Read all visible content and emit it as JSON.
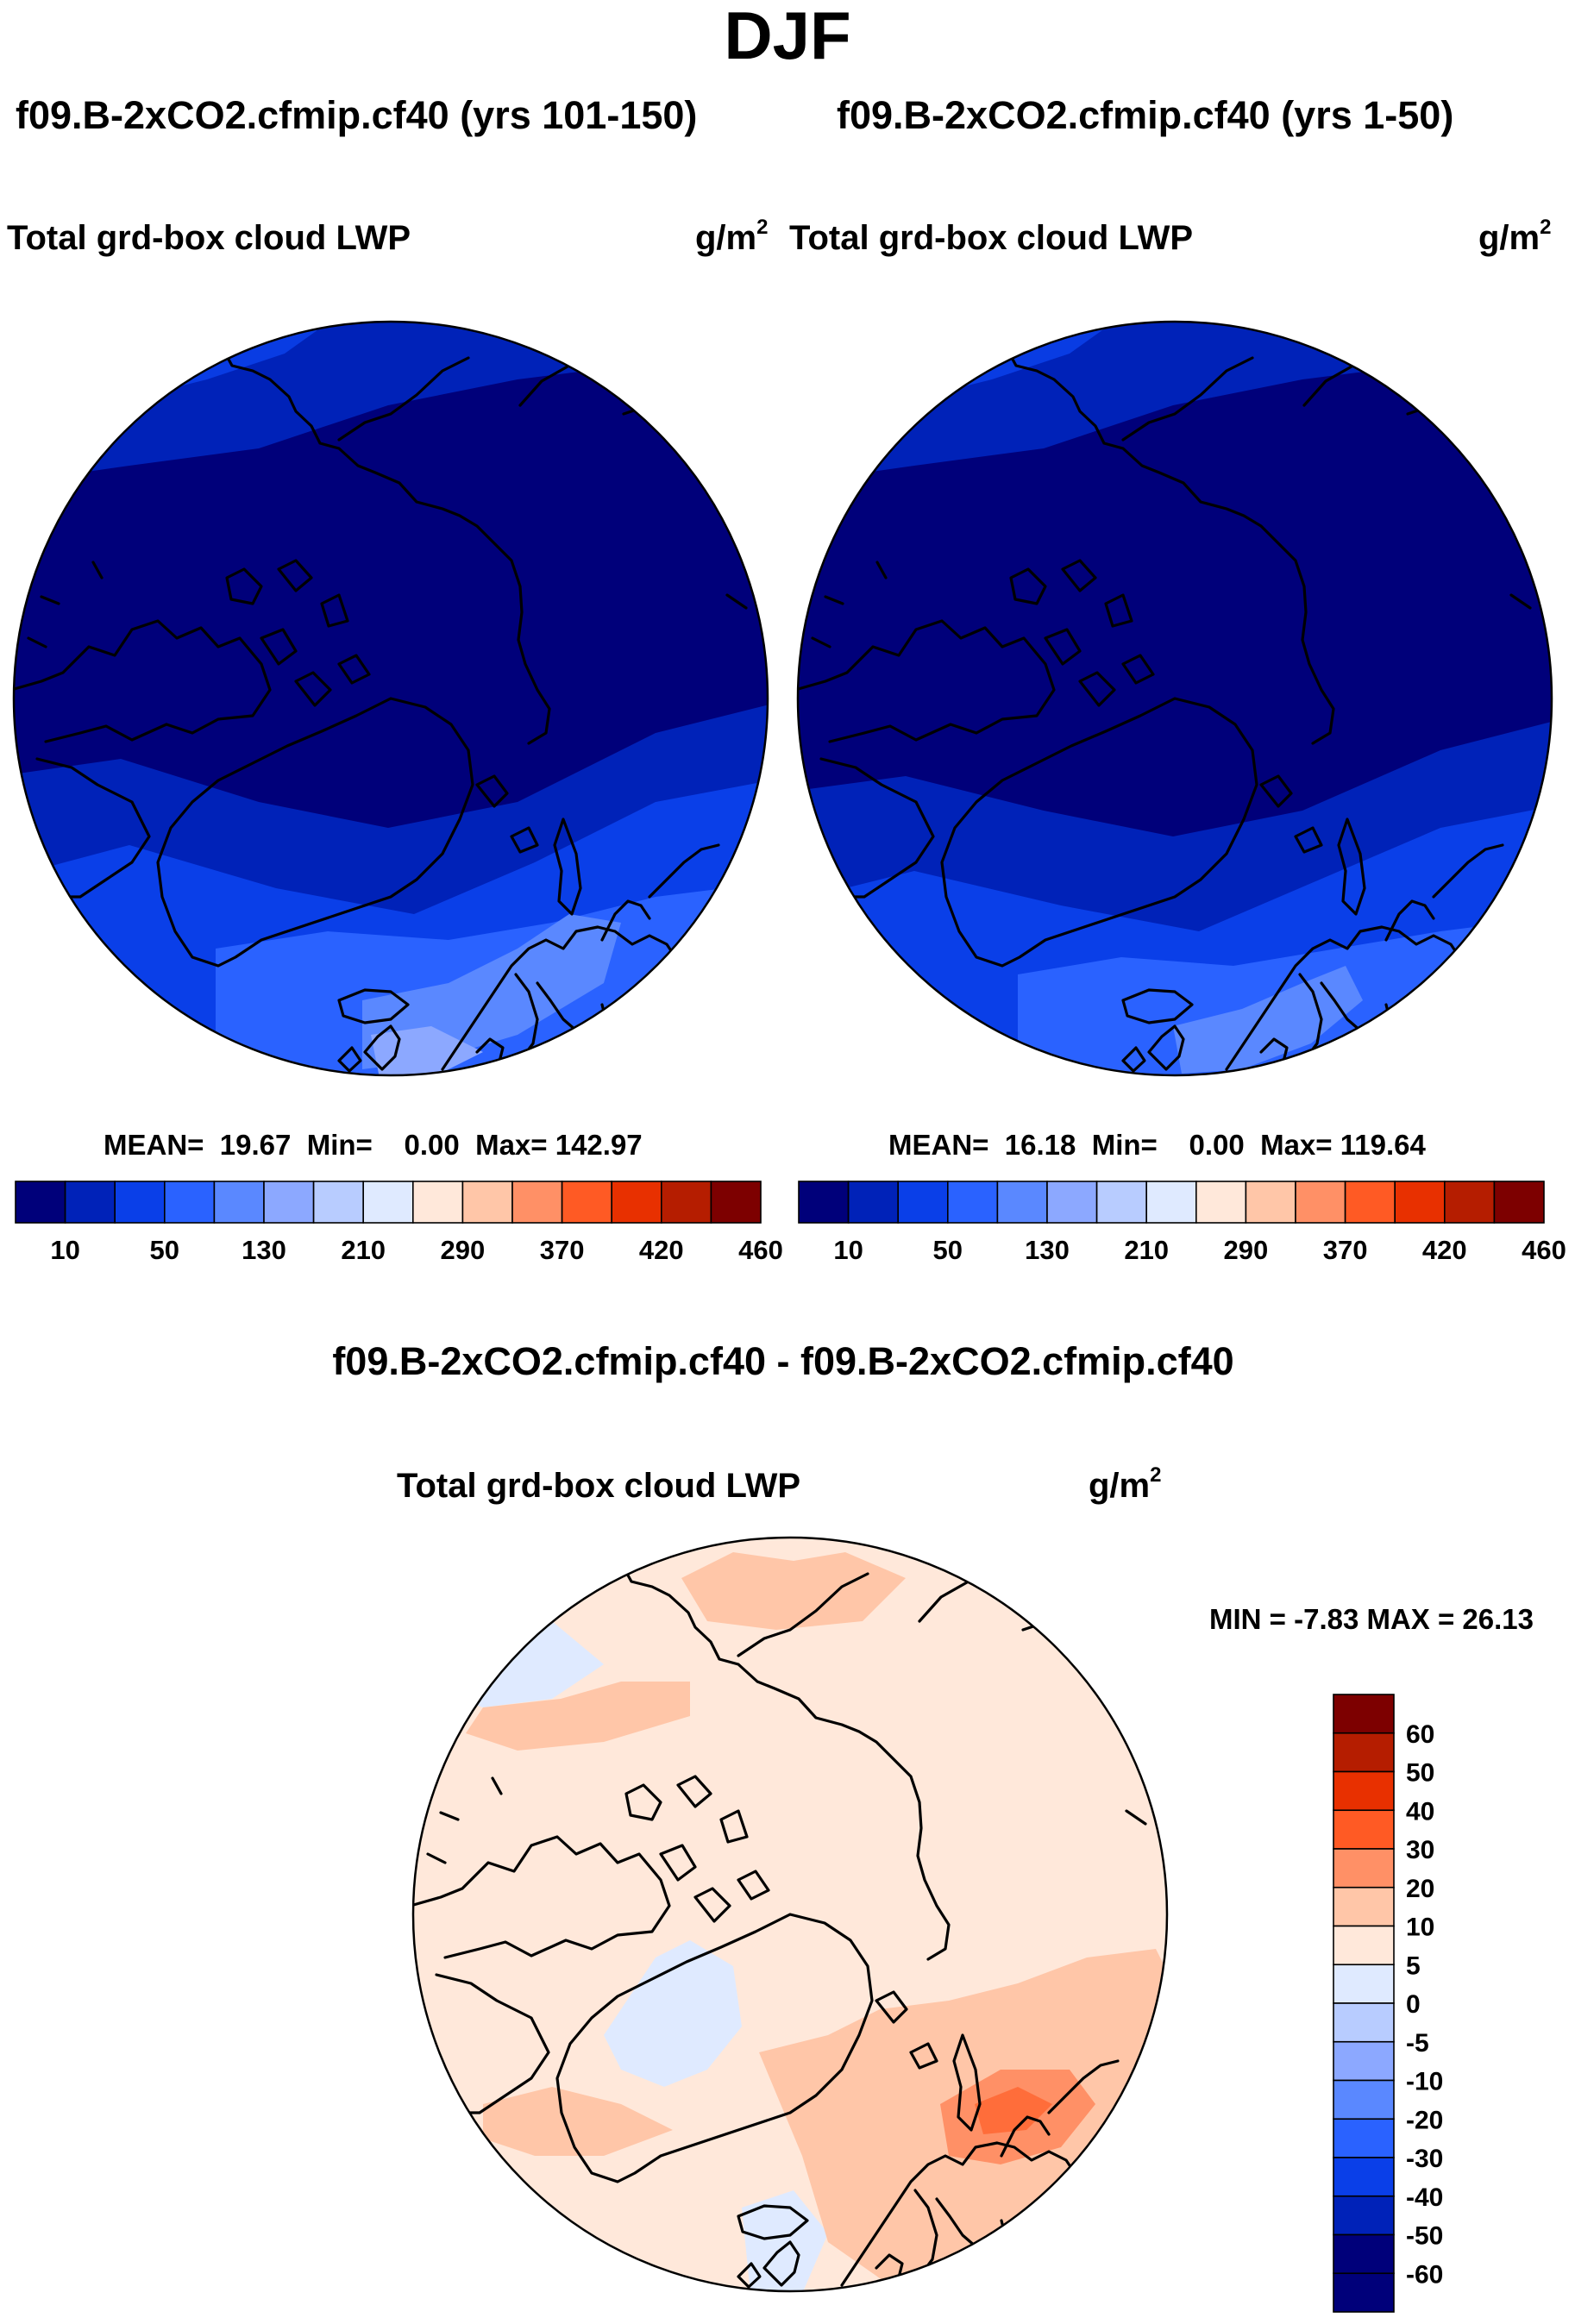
{
  "title": "DJF",
  "panels": [
    {
      "run_title": "f09.B-2xCO2.cfmip.cf40 (yrs 101-150)",
      "variable": "Total grd-box cloud LWP",
      "units": "g/m",
      "units_exp": "2",
      "stats": {
        "mean_label": "MEAN=",
        "mean": "19.67",
        "min_label": "Min=",
        "min": "0.00",
        "max_label": "Max=",
        "max": "142.97"
      }
    },
    {
      "run_title": "f09.B-2xCO2.cfmip.cf40 (yrs 1-50)",
      "variable": "Total grd-box cloud LWP",
      "units": "g/m",
      "units_exp": "2",
      "stats": {
        "mean_label": "MEAN=",
        "mean": "16.18",
        "min_label": "Min=",
        "min": "0.00",
        "max_label": "Max=",
        "max": "119.64"
      }
    }
  ],
  "difference": {
    "title": "f09.B-2xCO2.cfmip.cf40 - f09.B-2xCO2.cfmip.cf40",
    "variable": "Total grd-box cloud LWP",
    "units": "g/m",
    "units_exp": "2",
    "stats_text": "MIN =  -7.83 MAX =  26.13"
  },
  "chart_data": [
    {
      "type": "heatmap",
      "projection": "north polar stereographic",
      "title": "f09.B-2xCO2.cfmip.cf40 (yrs 101-150)",
      "variable": "Total grd-box cloud LWP",
      "units": "g/m^2",
      "mean": 19.67,
      "min": 0.0,
      "max": 142.97,
      "colorbar_levels": [
        10,
        50,
        90,
        130,
        170,
        210,
        250,
        290,
        330,
        370,
        400,
        420,
        440,
        460
      ],
      "colorbar_tick_labels": [
        "10",
        "50",
        "130",
        "210",
        "290",
        "370",
        "420",
        "460"
      ],
      "colorbar_colors": [
        "#00007a",
        "#0022b8",
        "#0a3fe8",
        "#2a62ff",
        "#5a88ff",
        "#8ca8ff",
        "#b8ccff",
        "#dfeaff",
        "#ffe8da",
        "#ffc6a8",
        "#ff9066",
        "#ff5a24",
        "#e83000",
        "#b51d00",
        "#7d0000"
      ]
    },
    {
      "type": "heatmap",
      "projection": "north polar stereographic",
      "title": "f09.B-2xCO2.cfmip.cf40 (yrs 1-50)",
      "variable": "Total grd-box cloud LWP",
      "units": "g/m^2",
      "mean": 16.18,
      "min": 0.0,
      "max": 119.64,
      "colorbar_levels": [
        10,
        50,
        90,
        130,
        170,
        210,
        250,
        290,
        330,
        370,
        400,
        420,
        440,
        460
      ],
      "colorbar_tick_labels": [
        "10",
        "50",
        "130",
        "210",
        "290",
        "370",
        "420",
        "460"
      ],
      "colorbar_colors": [
        "#00007a",
        "#0022b8",
        "#0a3fe8",
        "#2a62ff",
        "#5a88ff",
        "#8ca8ff",
        "#b8ccff",
        "#dfeaff",
        "#ffe8da",
        "#ffc6a8",
        "#ff9066",
        "#ff5a24",
        "#e83000",
        "#b51d00",
        "#7d0000"
      ]
    },
    {
      "type": "heatmap",
      "projection": "north polar stereographic",
      "title": "f09.B-2xCO2.cfmip.cf40 - f09.B-2xCO2.cfmip.cf40",
      "variable": "Total grd-box cloud LWP",
      "units": "g/m^2",
      "min": -7.83,
      "max": 26.13,
      "colorbar_levels": [
        -60,
        -50,
        -40,
        -30,
        -20,
        -10,
        -5,
        0,
        5,
        10,
        20,
        30,
        40,
        50,
        60
      ],
      "colorbar_tick_labels": [
        "-60",
        "-50",
        "-40",
        "-30",
        "-20",
        "-10",
        "-5",
        "0",
        "5",
        "10",
        "20",
        "30",
        "40",
        "50",
        "60"
      ],
      "colorbar_colors": [
        "#00007a",
        "#0022b8",
        "#0a3fe8",
        "#2a62ff",
        "#5a88ff",
        "#8ca8ff",
        "#b8ccff",
        "#dfeaff",
        "#ffe8da",
        "#ffc6a8",
        "#ff9066",
        "#ff5a24",
        "#e83000",
        "#b51d00",
        "#7d0000",
        "#7d0000"
      ]
    }
  ]
}
